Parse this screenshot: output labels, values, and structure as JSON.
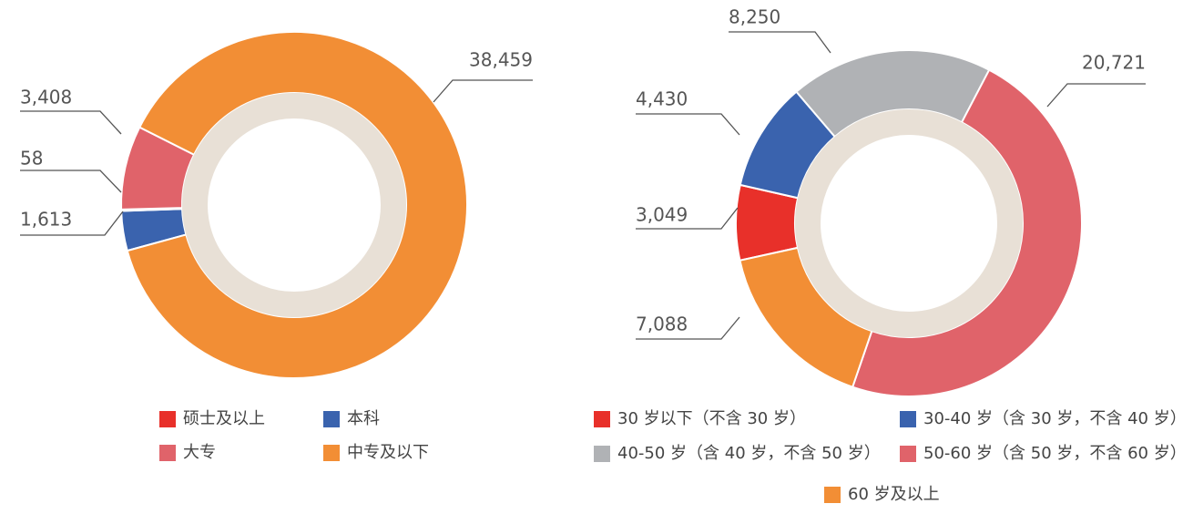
{
  "chart_data": [
    {
      "type": "pie",
      "categories": [
        "硕士及以上",
        "本科",
        "大专",
        "中专及以下"
      ],
      "values": [
        58,
        1613,
        3408,
        38459
      ],
      "value_labels": [
        "58",
        "1,613",
        "3,408",
        "38,459"
      ],
      "colors": [
        "#e8302a",
        "#3a63ae",
        "#e0636a",
        "#f28e35"
      ]
    },
    {
      "type": "pie",
      "categories": [
        "30 岁以下（不含 30 岁）",
        "30-40 岁（含 30 岁，不含 40 岁）",
        "40-50 岁（含 40 岁，不含 50 岁）",
        "50-60 岁（含 50 岁，不含 60 岁）",
        "60 岁及以上"
      ],
      "values": [
        3049,
        4430,
        8250,
        20721,
        7088
      ],
      "value_labels": [
        "3,049",
        "4,430",
        "8,250",
        "20,721",
        "7,088"
      ],
      "colors": [
        "#e8302a",
        "#3a63ae",
        "#b0b2b5",
        "#e0636a",
        "#f28e35"
      ]
    }
  ]
}
